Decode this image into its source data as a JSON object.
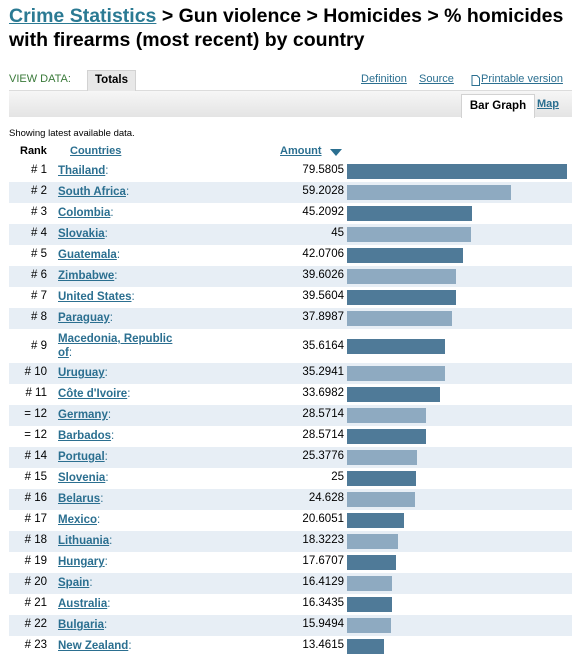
{
  "header": {
    "breadcrumb_link": "Crime Statistics",
    "breadcrumb_rest": "> Gun violence > Homicides > % homicides with firearms (most recent) by country"
  },
  "toolbar": {
    "view_data_label": "VIEW DATA:",
    "totals_tab": "Totals",
    "definition_link": "Definition",
    "source_link": "Source",
    "printable_link": "Printable version",
    "printable_icon": "page-icon"
  },
  "view_tabs": {
    "bar_graph": "Bar Graph",
    "map": "Map"
  },
  "note": "Showing latest available data.",
  "table": {
    "headers": {
      "rank": "Rank",
      "countries": "Countries",
      "amount": "Amount"
    },
    "sort_icon": "sort-down-arrow-icon",
    "bar_colors": {
      "odd": "#4f7a98",
      "even": "#8eaac1"
    },
    "rows": [
      {
        "rank": "# 1",
        "country": "Thailand",
        "amount": "79.5805",
        "value": 79.5805
      },
      {
        "rank": "# 2",
        "country": "South Africa",
        "amount": "59.2028",
        "value": 59.2028
      },
      {
        "rank": "# 3",
        "country": "Colombia",
        "amount": "45.2092",
        "value": 45.2092
      },
      {
        "rank": "# 4",
        "country": "Slovakia",
        "amount": "45",
        "value": 45
      },
      {
        "rank": "# 5",
        "country": "Guatemala",
        "amount": "42.0706",
        "value": 42.0706
      },
      {
        "rank": "# 6",
        "country": "Zimbabwe",
        "amount": "39.6026",
        "value": 39.6026
      },
      {
        "rank": "# 7",
        "country": "United States",
        "amount": "39.5604",
        "value": 39.5604
      },
      {
        "rank": "# 8",
        "country": "Paraguay",
        "amount": "37.8987",
        "value": 37.8987
      },
      {
        "rank": "# 9",
        "country": "Macedonia, Republic of",
        "amount": "35.6164",
        "value": 35.6164
      },
      {
        "rank": "# 10",
        "country": "Uruguay",
        "amount": "35.2941",
        "value": 35.2941
      },
      {
        "rank": "# 11",
        "country": "Côte d'Ivoire",
        "amount": "33.6982",
        "value": 33.6982
      },
      {
        "rank": "= 12",
        "country": "Germany",
        "amount": "28.5714",
        "value": 28.5714
      },
      {
        "rank": "= 12",
        "country": "Barbados",
        "amount": "28.5714",
        "value": 28.5714
      },
      {
        "rank": "# 14",
        "country": "Portugal",
        "amount": "25.3776",
        "value": 25.3776
      },
      {
        "rank": "# 15",
        "country": "Slovenia",
        "amount": "25",
        "value": 25
      },
      {
        "rank": "# 16",
        "country": "Belarus",
        "amount": "24.628",
        "value": 24.628
      },
      {
        "rank": "# 17",
        "country": "Mexico",
        "amount": "20.6051",
        "value": 20.6051
      },
      {
        "rank": "# 18",
        "country": "Lithuania",
        "amount": "18.3223",
        "value": 18.3223
      },
      {
        "rank": "# 19",
        "country": "Hungary",
        "amount": "17.6707",
        "value": 17.6707
      },
      {
        "rank": "# 20",
        "country": "Spain",
        "amount": "16.4129",
        "value": 16.4129
      },
      {
        "rank": "# 21",
        "country": "Australia",
        "amount": "16.3435",
        "value": 16.3435
      },
      {
        "rank": "# 22",
        "country": "Bulgaria",
        "amount": "15.9494",
        "value": 15.9494
      },
      {
        "rank": "# 23",
        "country": "New Zealand",
        "amount": "13.4615",
        "value": 13.4615
      }
    ]
  }
}
